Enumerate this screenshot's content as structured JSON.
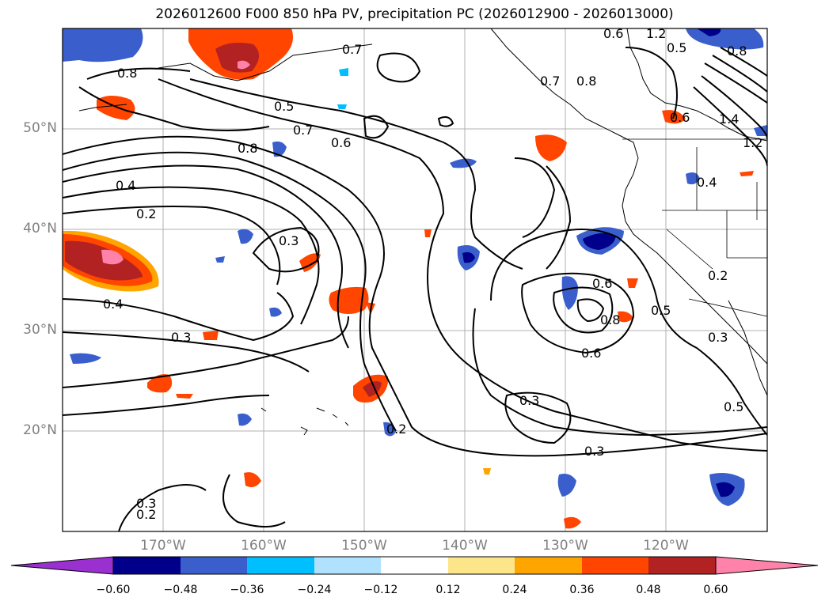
{
  "title": "2026012600 F000 850 hPa PV, precipitation PC (2026012900 - 2026013000)",
  "lat_labels": [
    "50°N",
    "40°N",
    "30°N",
    "20°N"
  ],
  "lon_labels": [
    "170°W",
    "160°W",
    "150°W",
    "140°W",
    "130°W",
    "120°W"
  ],
  "colorbar": {
    "tick_labels": [
      "−0.60",
      "−0.48",
      "−0.36",
      "−0.24",
      "−0.12",
      "0.12",
      "0.24",
      "0.36",
      "0.48",
      "0.60"
    ],
    "colors": [
      "#9b30d0",
      "#00008b",
      "#3a5fcd",
      "#00bfff",
      "#b0e2ff",
      "#ffffff",
      "#fde68a",
      "#ffa500",
      "#ff4500",
      "#b22222",
      "#ff82ab"
    ]
  },
  "contour_labels": [
    "0.8",
    "0.7",
    "0.5",
    "0.7",
    "0.6",
    "0.8",
    "0.4",
    "0.2",
    "0.3",
    "0.4",
    "0.3",
    "0.6",
    "0.8",
    "0.6",
    "0.4",
    "1.4",
    "1.2",
    "0.7",
    "0.8",
    "0.6",
    "0.3",
    "0.5",
    "0.3",
    "0.2",
    "0.3",
    "0.5",
    "0.3",
    "0.2",
    "0.2",
    "1.2",
    "0.6",
    "0.5",
    "0.8"
  ]
}
